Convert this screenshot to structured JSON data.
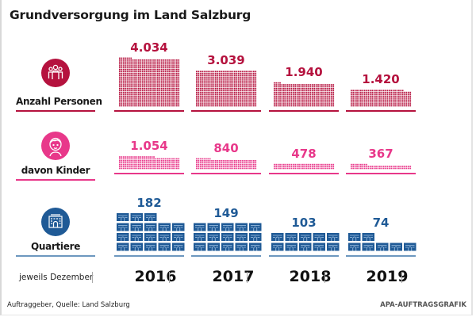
{
  "title": "Grundversorgung im Land Salzburg",
  "rows": [
    {
      "label": "Anzahl Personen",
      "icon": "persons-group-icon",
      "color": "#b5123e"
    },
    {
      "label": "davon Kinder",
      "icon": "child-face-icon",
      "color": "#e8388a"
    },
    {
      "label": "Quartiere",
      "icon": "building-icon",
      "color": "#1f5a96"
    }
  ],
  "years_caption": "jeweils Dezember",
  "footer": {
    "source": "Auftraggeber, Quelle: Land Salzburg",
    "credit": "APA-AUFTRAGSGRAFIK"
  },
  "chart_data": {
    "type": "bar",
    "title": "Grundversorgung im Land Salzburg",
    "categories": [
      "2016",
      "2017",
      "2018",
      "2019"
    ],
    "xlabel": "jeweils Dezember",
    "series": [
      {
        "name": "Anzahl Personen",
        "values": [
          4034,
          3039,
          1940,
          1420
        ],
        "labels": [
          "4.034",
          "3.039",
          "1.940",
          "1.420"
        ],
        "color": "#b5123e",
        "units_per_dot": 5
      },
      {
        "name": "davon Kinder",
        "values": [
          1054,
          840,
          478,
          367
        ],
        "labels": [
          "1.054",
          "840",
          "478",
          "367"
        ],
        "color": "#e8388a",
        "units_per_dot": 5
      },
      {
        "name": "Quartiere",
        "values": [
          182,
          149,
          103,
          74
        ],
        "labels": [
          "182",
          "149",
          "103",
          "74"
        ],
        "color": "#1f5a96",
        "units_per_block": 10
      }
    ]
  }
}
